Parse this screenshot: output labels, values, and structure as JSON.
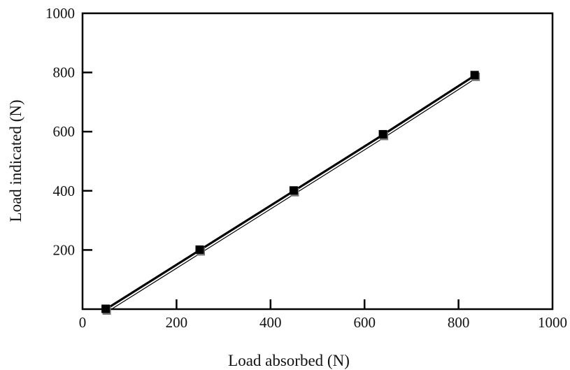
{
  "chart_data": {
    "type": "line",
    "title": "",
    "xlabel": "Load absorbed (N)",
    "ylabel": "Load indicated (N)",
    "xlim": [
      0,
      1000
    ],
    "ylim": [
      0,
      1000
    ],
    "x_ticks": [
      0,
      200,
      400,
      600,
      800,
      1000
    ],
    "y_ticks": [
      200,
      400,
      600,
      800,
      1000
    ],
    "grid": false,
    "legend": "none",
    "series": [
      {
        "marker": "square",
        "color": "#000000",
        "x": [
          50,
          250,
          450,
          640,
          835
        ],
        "y": [
          0,
          200,
          400,
          590,
          790
        ]
      }
    ]
  }
}
